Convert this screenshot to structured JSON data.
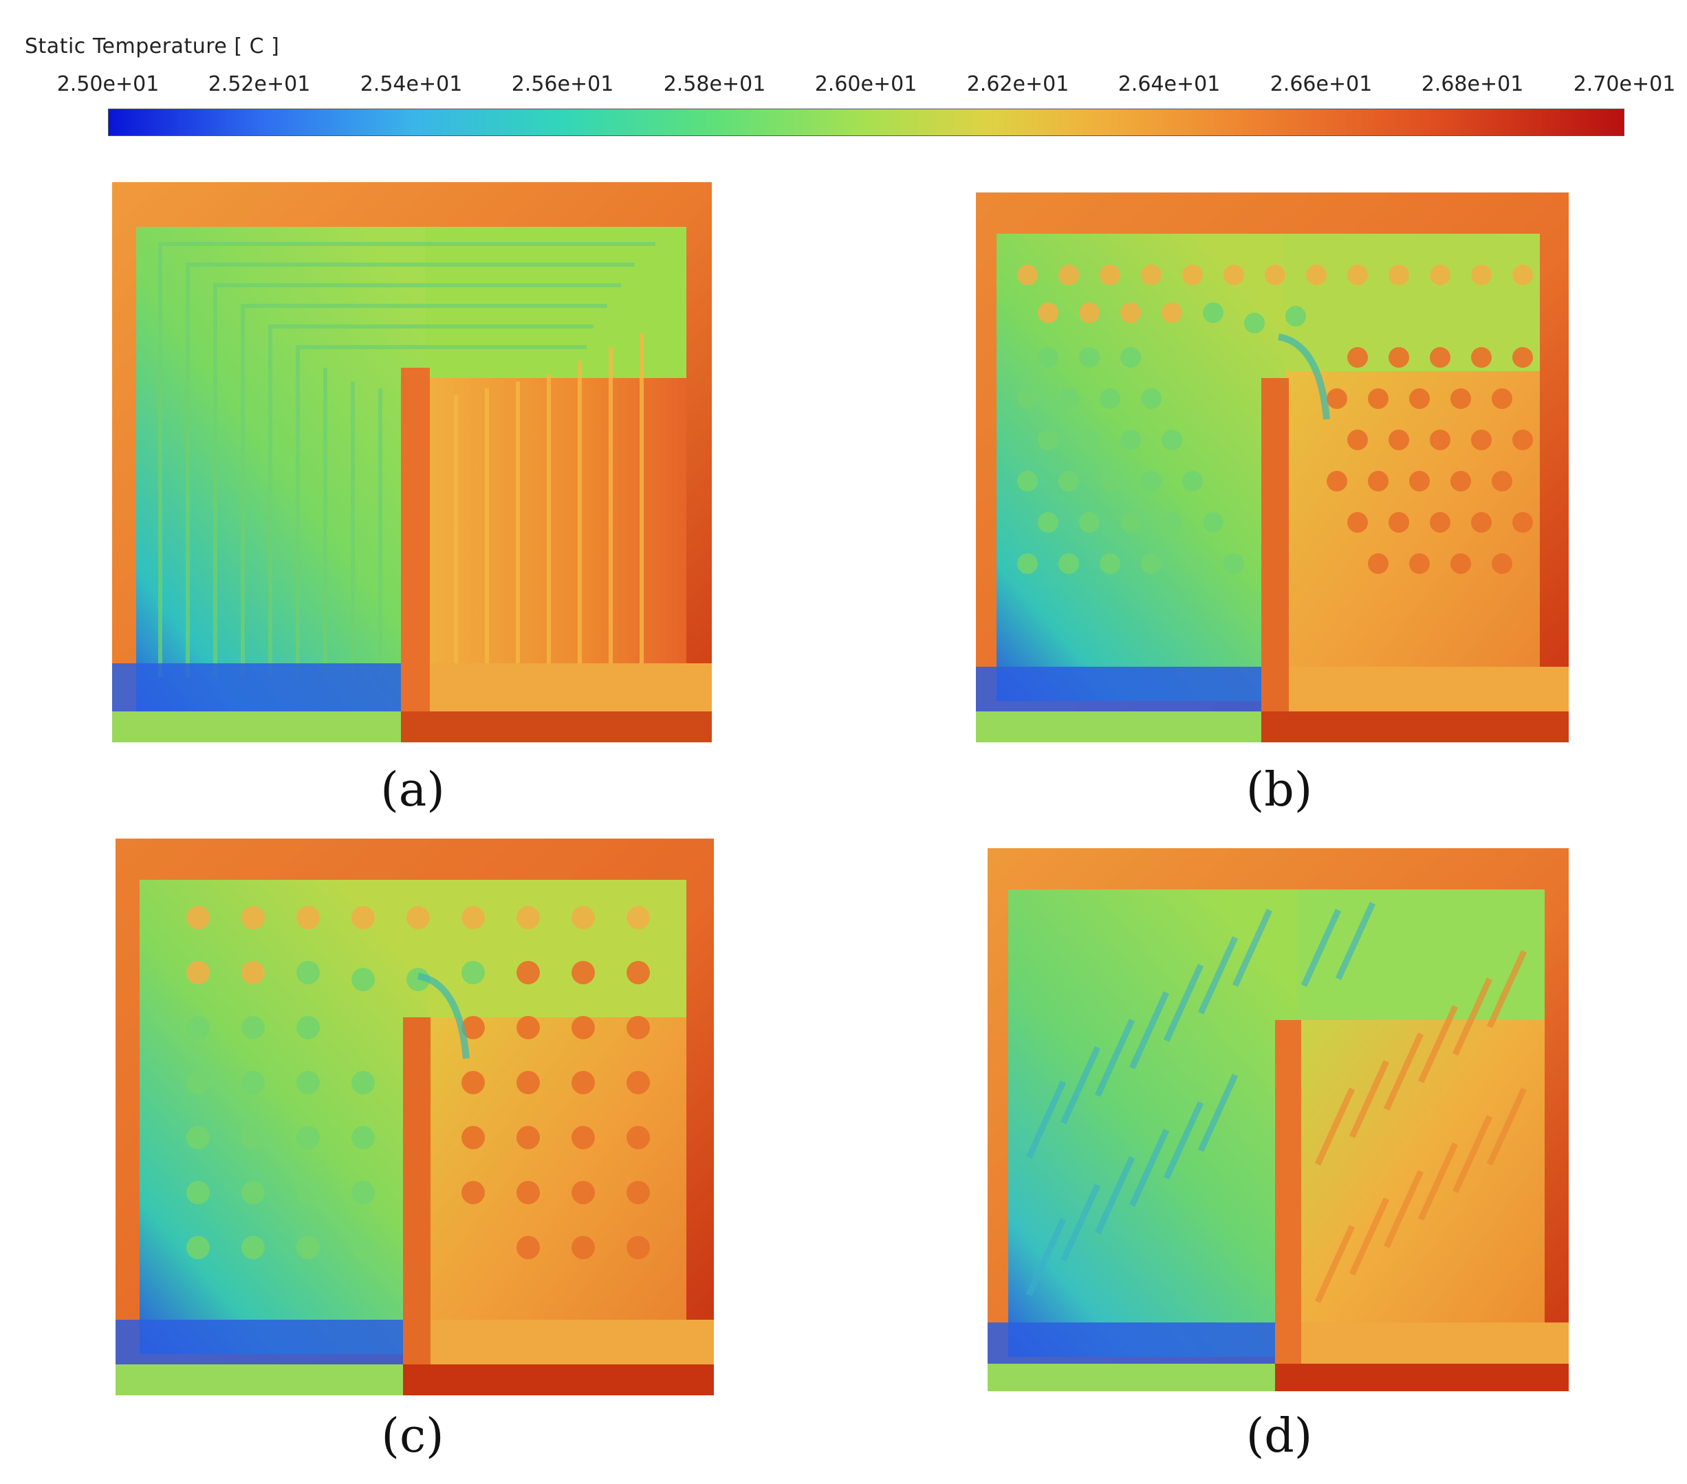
{
  "legend": {
    "title": "Static Temperature [ C ]",
    "ticks": [
      "2.50e+01",
      "2.52e+01",
      "2.54e+01",
      "2.56e+01",
      "2.58e+01",
      "2.60e+01",
      "2.62e+01",
      "2.64e+01",
      "2.66e+01",
      "2.68e+01",
      "2.70e+01"
    ],
    "colors": [
      "#0a14d6",
      "#3ab4ea",
      "#5ee07a",
      "#ddd244",
      "#ef8430",
      "#b81010"
    ]
  },
  "panels": [
    {
      "id": "a",
      "caption": "(a)",
      "fin_type": "continuous-channels"
    },
    {
      "id": "b",
      "caption": "(b)",
      "fin_type": "circular-pin-fins"
    },
    {
      "id": "c",
      "caption": "(c)",
      "fin_type": "circular-pin-fins"
    },
    {
      "id": "d",
      "caption": "(d)",
      "fin_type": "inclined-rhombic-fins"
    }
  ]
}
